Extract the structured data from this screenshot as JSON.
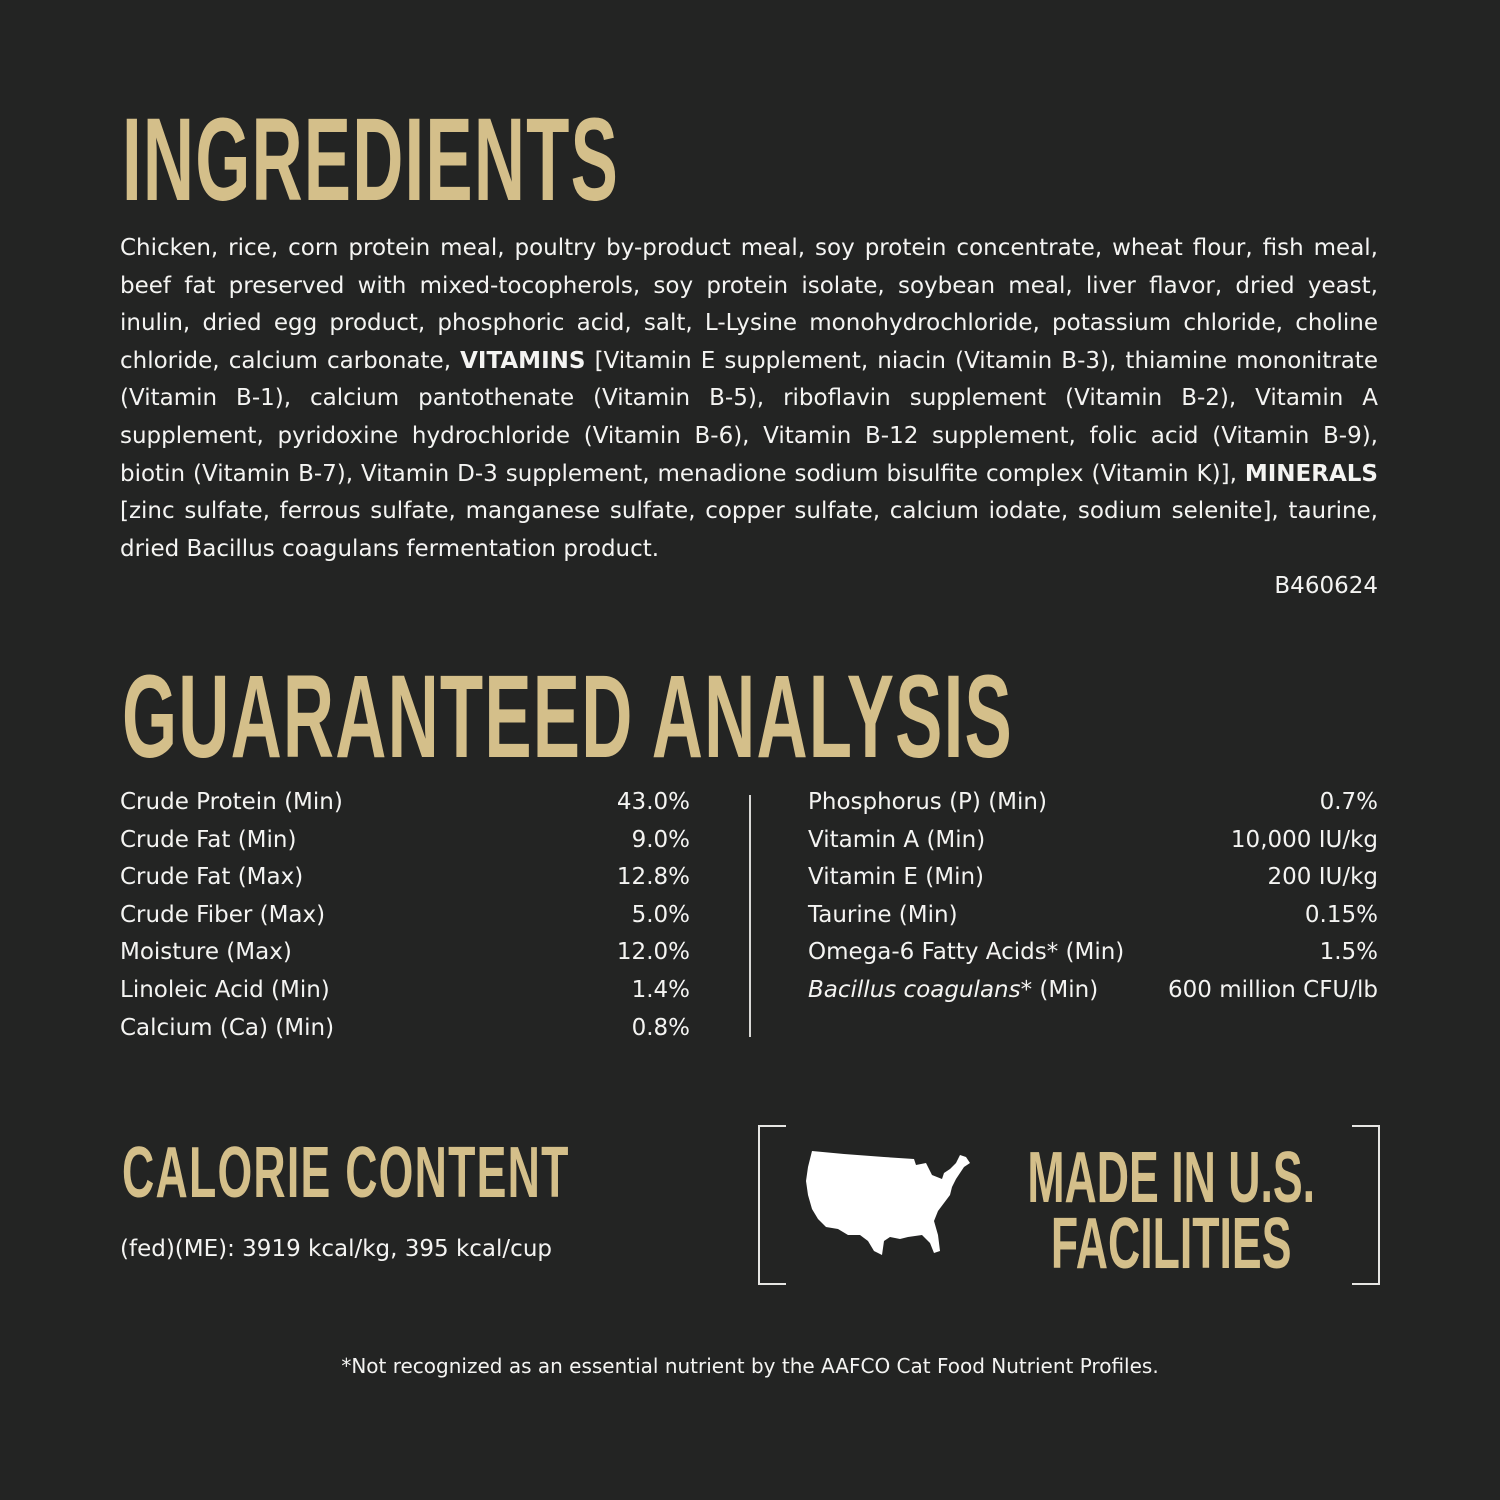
{
  "ingredients": {
    "title": "INGREDIENTS",
    "text_1": "Chicken, rice, corn protein meal, poultry by-product meal, soy protein concentrate, wheat flour, fish meal, beef fat preserved with mixed-tocopherols, soy protein isolate, soybean meal, liver flavor, dried yeast, inulin, dried egg product, phosphoric acid, salt, L-Lysine monohydrochloride, potassium chloride, choline chloride, calcium carbonate, ",
    "bold_1": "VITAMINS",
    "text_2": " [Vitamin E supplement, niacin (Vitamin B-3), thiamine mononitrate (Vitamin B-1), calcium pantothenate (Vitamin B-5), riboflavin supplement (Vitamin B-2), Vitamin A supplement, pyridoxine hydrochloride (Vitamin B-6), Vitamin B-12 supplement, folic acid (Vitamin B-9), biotin (Vitamin B-7), Vitamin D-3 supplement, menadione sodium bisulfite complex (Vitamin K)], ",
    "bold_2": "MINERALS",
    "text_3": " [zinc sulfate, ferrous sulfate, manganese sulfate, copper sulfate, calcium iodate, sodium selenite], taurine, dried Bacillus coagulans fermentation product.",
    "code": "B460624"
  },
  "analysis": {
    "title": "GUARANTEED ANALYSIS",
    "left": [
      {
        "label": "Crude Protein (Min)",
        "value": "43.0%"
      },
      {
        "label": "Crude Fat (Min)",
        "value": "9.0%"
      },
      {
        "label": "Crude Fat (Max)",
        "value": "12.8%"
      },
      {
        "label": "Crude Fiber (Max)",
        "value": "5.0%"
      },
      {
        "label": "Moisture (Max)",
        "value": "12.0%"
      },
      {
        "label": "Linoleic Acid (Min)",
        "value": "1.4%"
      },
      {
        "label": "Calcium (Ca) (Min)",
        "value": "0.8%"
      }
    ],
    "right": [
      {
        "label": "Phosphorus (P) (Min)",
        "value": "0.7%"
      },
      {
        "label": "Vitamin A (Min)",
        "value": "10,000 IU/kg"
      },
      {
        "label": "Vitamin E (Min)",
        "value": "200 IU/kg"
      },
      {
        "label": "Taurine (Min)",
        "value": "0.15%"
      },
      {
        "label": "Omega-6 Fatty Acids* (Min)",
        "value": "1.5%"
      }
    ],
    "last_right": {
      "label_italic": "Bacillus coagulans",
      "label_rest": "* (Min)",
      "value": "600 million CFU/lb"
    }
  },
  "calorie": {
    "title": "CALORIE CONTENT",
    "text": "(fed)(ME): 3919 kcal/kg, 395 kcal/cup"
  },
  "badge": {
    "line1": "MADE IN U.S.",
    "line2": "FACILITIES",
    "icon": "usa-map-icon"
  },
  "footnote": "*Not recognized as an essential nutrient by the AAFCO Cat Food Nutrient Profiles.",
  "colors": {
    "background": "#232423",
    "heading_gold": "#d4bf8a",
    "text": "#f4f4f2"
  }
}
